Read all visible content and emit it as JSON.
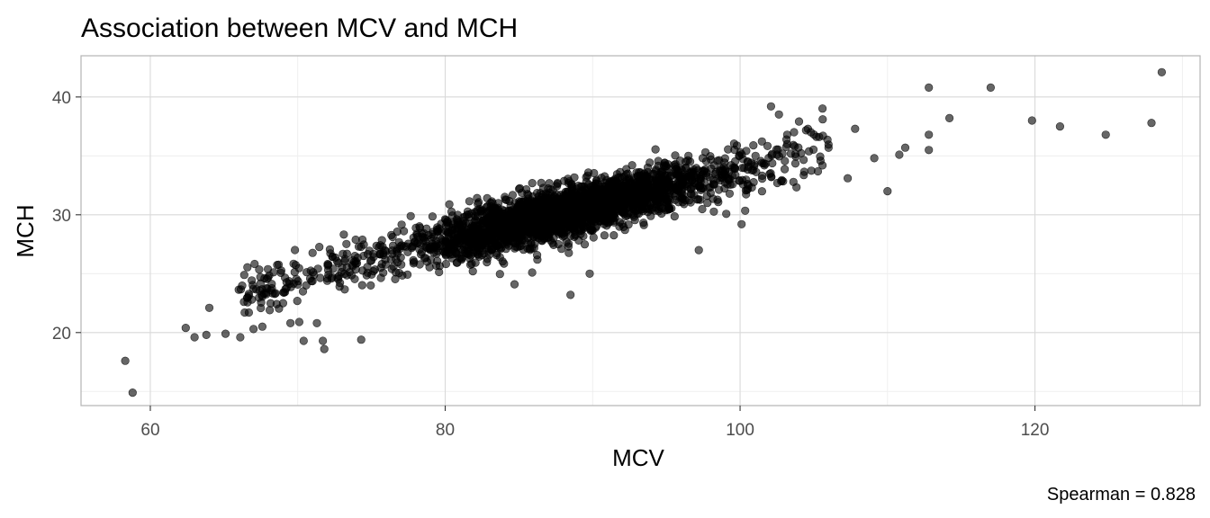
{
  "chart_data": {
    "type": "scatter",
    "title": "Association between MCV and MCH",
    "xlabel": "MCV",
    "ylabel": "MCH",
    "caption": "Spearman = 0.828",
    "xlim": [
      55.3,
      131.2
    ],
    "ylim": [
      13.8,
      43.5
    ],
    "x_ticks": [
      60,
      80,
      100,
      120
    ],
    "y_ticks": [
      20,
      30,
      40
    ],
    "grid": true,
    "point_color": "#000000",
    "point_opacity": 0.6,
    "trend": {
      "slope": 0.3,
      "intercept": 3.8,
      "x_center": 88.0,
      "x_sd": 5.2,
      "y_sd": 1.05,
      "n_dense": 2600
    },
    "outliers": [
      {
        "x": 58.3,
        "y": 17.6
      },
      {
        "x": 58.8,
        "y": 14.9
      },
      {
        "x": 62.4,
        "y": 20.4
      },
      {
        "x": 63.0,
        "y": 19.6
      },
      {
        "x": 63.8,
        "y": 19.8
      },
      {
        "x": 64.0,
        "y": 22.1
      },
      {
        "x": 65.1,
        "y": 19.9
      },
      {
        "x": 66.1,
        "y": 19.6
      },
      {
        "x": 66.4,
        "y": 21.7
      },
      {
        "x": 67.0,
        "y": 20.3
      },
      {
        "x": 67.6,
        "y": 20.5
      },
      {
        "x": 68.1,
        "y": 21.9
      },
      {
        "x": 69.0,
        "y": 22.5
      },
      {
        "x": 69.5,
        "y": 20.8
      },
      {
        "x": 70.1,
        "y": 20.9
      },
      {
        "x": 70.4,
        "y": 19.3
      },
      {
        "x": 71.3,
        "y": 20.8
      },
      {
        "x": 71.7,
        "y": 19.3
      },
      {
        "x": 71.8,
        "y": 18.6
      },
      {
        "x": 74.3,
        "y": 19.4
      },
      {
        "x": 84.7,
        "y": 24.1
      },
      {
        "x": 85.9,
        "y": 25.1
      },
      {
        "x": 88.5,
        "y": 23.2
      },
      {
        "x": 89.8,
        "y": 25.0
      },
      {
        "x": 97.2,
        "y": 27.0
      },
      {
        "x": 100.1,
        "y": 29.2
      },
      {
        "x": 102.1,
        "y": 39.2
      },
      {
        "x": 103.2,
        "y": 36.8
      },
      {
        "x": 104.6,
        "y": 37.3
      },
      {
        "x": 105.6,
        "y": 38.1
      },
      {
        "x": 107.3,
        "y": 33.1
      },
      {
        "x": 107.8,
        "y": 37.3
      },
      {
        "x": 109.1,
        "y": 34.8
      },
      {
        "x": 110.0,
        "y": 32.0
      },
      {
        "x": 110.8,
        "y": 35.1
      },
      {
        "x": 111.2,
        "y": 35.7
      },
      {
        "x": 112.8,
        "y": 40.8
      },
      {
        "x": 112.8,
        "y": 36.8
      },
      {
        "x": 112.8,
        "y": 35.5
      },
      {
        "x": 114.2,
        "y": 38.2
      },
      {
        "x": 117.0,
        "y": 40.8
      },
      {
        "x": 119.8,
        "y": 38.0
      },
      {
        "x": 121.7,
        "y": 37.5
      },
      {
        "x": 124.8,
        "y": 36.8
      },
      {
        "x": 127.9,
        "y": 37.8
      },
      {
        "x": 128.6,
        "y": 42.1
      }
    ]
  }
}
